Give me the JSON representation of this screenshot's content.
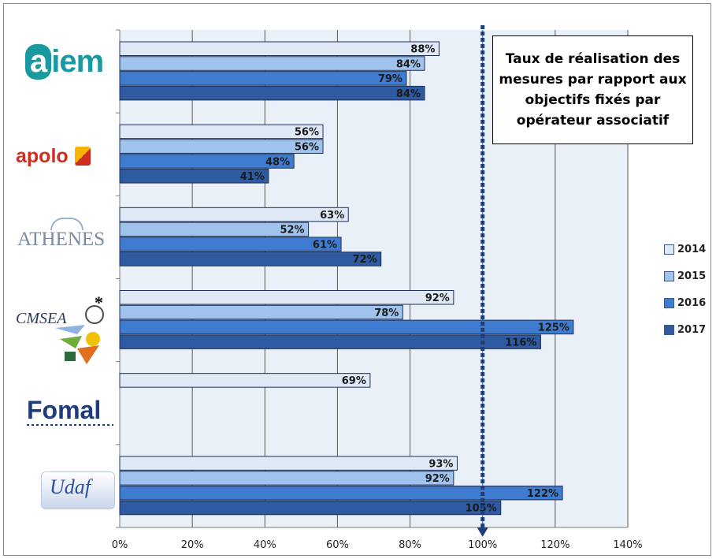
{
  "chart_data": {
    "type": "bar",
    "orientation": "horizontal",
    "title": "Taux de réalisation des mesures par rapport aux objectifs fixés par opérateur associatif",
    "categories": [
      "aiem",
      "apolo",
      "ATHENES",
      "CMSEA",
      "Fomal",
      "Udaf"
    ],
    "series": [
      {
        "name": "2014",
        "color": "#dfe9f6",
        "values": [
          88,
          56,
          63,
          92,
          69,
          93
        ]
      },
      {
        "name": "2015",
        "color": "#9fc3ec",
        "values": [
          84,
          56,
          52,
          78,
          null,
          92
        ]
      },
      {
        "name": "2016",
        "color": "#3f7ccf",
        "values": [
          79,
          48,
          61,
          125,
          null,
          122
        ]
      },
      {
        "name": "2017",
        "color": "#2e5aa2",
        "values": [
          84,
          41,
          72,
          116,
          null,
          105
        ]
      }
    ],
    "data_labels": [
      [
        "88%",
        "84%",
        "79%",
        "84%"
      ],
      [
        "56%",
        "56%",
        "48%",
        "41%"
      ],
      [
        "63%",
        "52%",
        "61%",
        "72%"
      ],
      [
        "92%",
        "78%",
        "125%",
        "116%"
      ],
      [
        "69%"
      ],
      [
        "93%",
        "92%",
        "122%",
        "105%"
      ]
    ],
    "x_ticks": [
      "0%",
      "20%",
      "40%",
      "60%",
      "80%",
      "100%",
      "120%",
      "140%"
    ],
    "xlim": [
      0,
      140
    ],
    "reference_line": {
      "value": 100,
      "style": "dashed-arrow"
    },
    "grid": true,
    "legend": "right",
    "footnote_marker": "*"
  },
  "colors": {
    "plot_bg": "#eaf0f8",
    "grid": "#5a5a5a",
    "axis": "#7a7a7a",
    "ref_line": "#1f3f7a"
  },
  "logos": {
    "aiem_prefix": "a",
    "aiem_rest": "iem",
    "apolo": "apolo",
    "athenes": "ATHENES",
    "cmsea": "CMSEA",
    "fomal": "Fomal",
    "udaf": "Udaf"
  }
}
